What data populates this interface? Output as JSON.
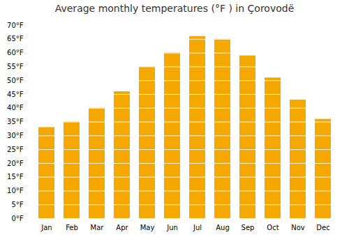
{
  "chart_data": {
    "type": "bar",
    "title": "Average monthly temperatures (°F ) in Çorovodë",
    "categories": [
      "Jan",
      "Feb",
      "Mar",
      "Apr",
      "May",
      "Jun",
      "Jul",
      "Aug",
      "Sep",
      "Oct",
      "Nov",
      "Dec"
    ],
    "values": [
      33,
      35,
      40,
      46,
      55,
      60,
      66,
      65,
      59,
      51,
      43,
      36
    ],
    "color": "#F5A800",
    "ylim": [
      0,
      70
    ],
    "yticks": [
      {
        "value": 0,
        "label": "0°F"
      },
      {
        "value": 5,
        "label": "5°F"
      },
      {
        "value": 10,
        "label": "10°F"
      },
      {
        "value": 15,
        "label": "15°F"
      },
      {
        "value": 20,
        "label": "20°F"
      },
      {
        "value": 25,
        "label": "25°F"
      },
      {
        "value": 30,
        "label": "30°F"
      },
      {
        "value": 35,
        "label": "35°F"
      },
      {
        "value": 40,
        "label": "40°F"
      },
      {
        "value": 45,
        "label": "45°F"
      },
      {
        "value": 50,
        "label": "50°F"
      },
      {
        "value": 55,
        "label": "55°F"
      },
      {
        "value": 60,
        "label": "60°F"
      },
      {
        "value": 65,
        "label": "65°F"
      },
      {
        "value": 70,
        "label": "70°F"
      }
    ],
    "grid": true
  }
}
